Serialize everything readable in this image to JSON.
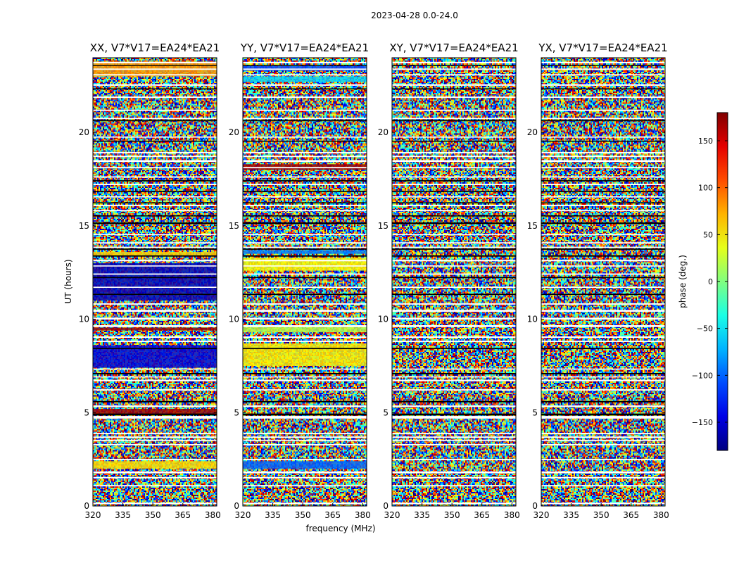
{
  "figure": {
    "suptitle": "2023-04-28 0.0-24.0",
    "xlabel": "frequency (MHz)",
    "ylabel": "UT (hours)"
  },
  "chart_data": {
    "type": "heatmap",
    "x_range": [
      320,
      382
    ],
    "y_range": [
      0,
      24
    ],
    "x_ticks": [
      320,
      335,
      350,
      365,
      380
    ],
    "x_tick_labels": [
      "320",
      "335",
      "350",
      "365",
      "380"
    ],
    "y_ticks": [
      0,
      5,
      10,
      15,
      20
    ],
    "y_tick_labels": [
      "0",
      "5",
      "10",
      "15",
      "20"
    ],
    "panels": [
      {
        "title": "XX, V7*V17=EA24*EA21",
        "polarization": "XX",
        "coherent_bands": [
          {
            "t0": 2.0,
            "t1": 2.4,
            "phase": 55
          },
          {
            "t0": 4.9,
            "t1": 5.2,
            "phase": 170
          },
          {
            "t0": 7.4,
            "t1": 8.6,
            "phase": -150
          },
          {
            "t0": 9.4,
            "t1": 9.55,
            "phase": 170
          },
          {
            "t0": 11.0,
            "t1": 13.0,
            "phase": -160
          },
          {
            "t0": 13.4,
            "t1": 13.6,
            "phase": 60
          },
          {
            "t0": 23.0,
            "t1": 23.8,
            "phase": 80
          }
        ]
      },
      {
        "title": "YY, V7*V17=EA24*EA21",
        "polarization": "YY",
        "coherent_bands": [
          {
            "t0": 2.0,
            "t1": 2.4,
            "phase": -100
          },
          {
            "t0": 7.5,
            "t1": 8.7,
            "phase": 50
          },
          {
            "t0": 9.3,
            "t1": 9.6,
            "phase": 20
          },
          {
            "t0": 12.6,
            "t1": 13.3,
            "phase": 45
          },
          {
            "t0": 13.5,
            "t1": 13.7,
            "phase": -90
          },
          {
            "t0": 18.0,
            "t1": 18.3,
            "phase": 170
          },
          {
            "t0": 22.7,
            "t1": 23.0,
            "phase": -60
          },
          {
            "t0": 23.3,
            "t1": 23.6,
            "phase": -110
          }
        ]
      },
      {
        "title": "XY, V7*V17=EA24*EA21",
        "polarization": "XY",
        "coherent_bands": []
      },
      {
        "title": "YX, V7*V17=EA24*EA21",
        "polarization": "YX",
        "coherent_bands": []
      }
    ],
    "flagged_intervals": [
      [
        0.1,
        0.18
      ],
      [
        1.05,
        1.12
      ],
      [
        1.48,
        1.55
      ],
      [
        1.75,
        1.85
      ],
      [
        2.45,
        2.52
      ],
      [
        3.25,
        3.32
      ],
      [
        3.48,
        3.55
      ],
      [
        3.65,
        3.72
      ],
      [
        3.85,
        3.92
      ],
      [
        4.68,
        4.82
      ],
      [
        5.3,
        5.38
      ],
      [
        6.18,
        6.25
      ],
      [
        6.68,
        6.76
      ],
      [
        6.88,
        6.94
      ],
      [
        7.3,
        7.36
      ],
      [
        8.78,
        8.85
      ],
      [
        9.0,
        9.08
      ],
      [
        9.58,
        9.68
      ],
      [
        9.98,
        10.08
      ],
      [
        10.4,
        10.5
      ],
      [
        10.78,
        10.85
      ],
      [
        11.68,
        11.74
      ],
      [
        12.38,
        12.45
      ],
      [
        12.82,
        12.88
      ],
      [
        13.1,
        13.18
      ],
      [
        13.82,
        13.88
      ],
      [
        14.05,
        14.12
      ],
      [
        14.5,
        14.56
      ],
      [
        15.78,
        15.85
      ],
      [
        16.05,
        16.12
      ],
      [
        16.52,
        16.58
      ],
      [
        17.18,
        17.25
      ],
      [
        17.58,
        17.65
      ],
      [
        18.08,
        18.15
      ],
      [
        18.42,
        18.52
      ],
      [
        18.68,
        18.75
      ],
      [
        18.88,
        18.95
      ],
      [
        19.72,
        19.78
      ],
      [
        20.72,
        20.78
      ],
      [
        21.15,
        21.22
      ],
      [
        21.85,
        21.92
      ],
      [
        22.5,
        22.58
      ],
      [
        23.05,
        23.12
      ],
      [
        23.35,
        23.42
      ],
      [
        23.7,
        23.78
      ]
    ],
    "black_intervals": [
      [
        4.85,
        4.95
      ],
      [
        5.55,
        5.62
      ],
      [
        7.05,
        7.12
      ],
      [
        8.4,
        8.46
      ],
      [
        11.3,
        11.36
      ],
      [
        12.2,
        12.26
      ],
      [
        13.35,
        13.42
      ],
      [
        13.72,
        13.78
      ],
      [
        15.1,
        15.18
      ],
      [
        15.5,
        15.56
      ],
      [
        16.2,
        16.26
      ],
      [
        16.8,
        16.86
      ],
      [
        17.38,
        17.44
      ],
      [
        19.5,
        19.55
      ],
      [
        20.6,
        20.66
      ],
      [
        22.3,
        22.36
      ],
      [
        23.55,
        23.6
      ]
    ],
    "colorbar": {
      "label": "phase (deg.)",
      "colormap": "jet",
      "range": [
        -180,
        180
      ],
      "ticks": [
        150,
        100,
        50,
        0,
        -50,
        -100,
        -150
      ],
      "tick_labels": [
        "150",
        "100",
        "50",
        "0",
        "−50",
        "−100",
        "−150"
      ]
    }
  },
  "colors": {
    "axis": "#000000",
    "background": "#ffffff",
    "flag": "#ffffff",
    "blank_line": "#000000"
  }
}
